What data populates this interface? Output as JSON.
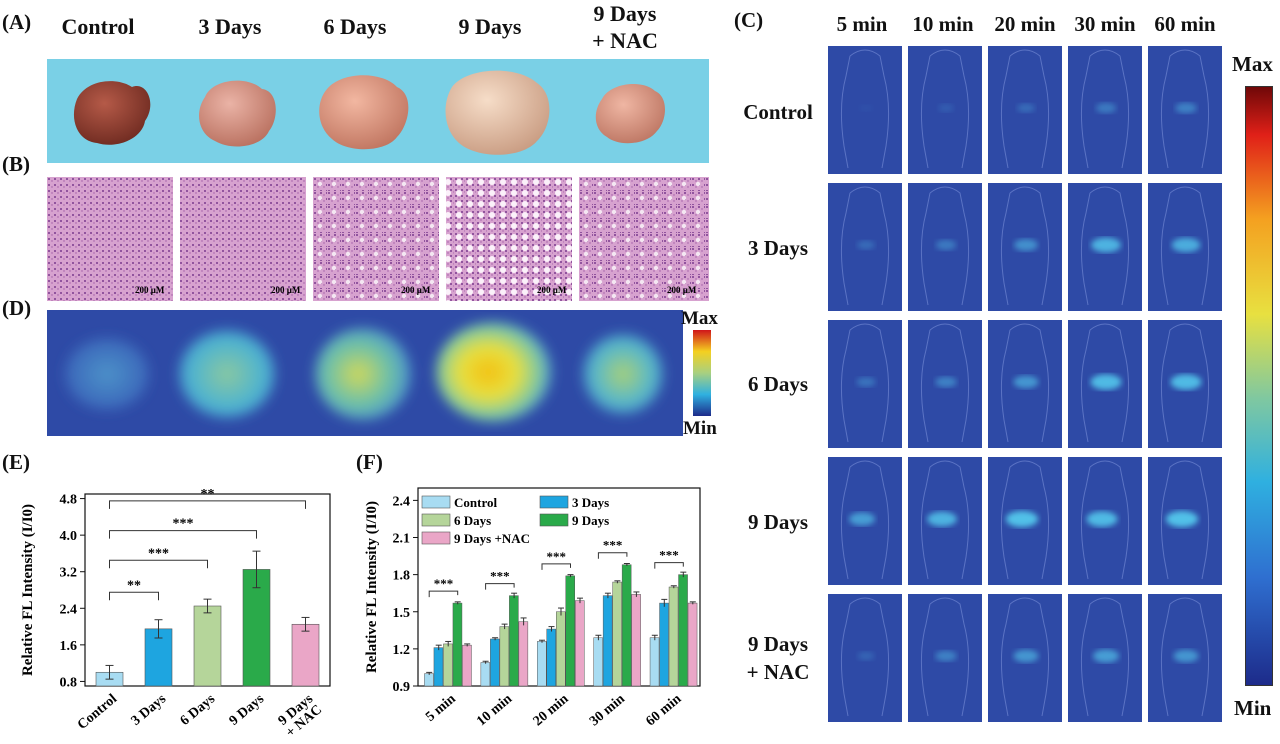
{
  "panels": {
    "a": "(A)",
    "b": "(B)",
    "c": "(C)",
    "d": "(D)",
    "e": "(E)",
    "f": "(F)"
  },
  "groups": [
    "Control",
    "3 Days",
    "6 Days",
    "9 Days",
    "9 Days\n+ NAC"
  ],
  "a": {
    "headers": [
      "Control",
      "3 Days",
      "6 Days",
      "9 Days",
      "9 Days",
      "+ NAC"
    ],
    "background": "#7ad0e6",
    "liver_colors": [
      "#8a3a2c",
      "#d39083",
      "#d9927e",
      "#e2bfa6",
      "#d79480"
    ]
  },
  "b": {
    "scale": "200 μM"
  },
  "d": {
    "max": "Max",
    "min": "Min"
  },
  "c": {
    "time_headers": [
      "5 min",
      "10 min",
      "20 min",
      "30 min",
      "60 min"
    ],
    "row_labels": [
      "Control",
      "3 Days",
      "6 Days",
      "9 Days",
      "9 Days",
      "+ NAC"
    ],
    "max": "Max",
    "min": "Min",
    "bg_color": "#2e4aa6"
  },
  "chart_data": [
    {
      "type": "bar",
      "panel": "E",
      "categories": [
        "Control",
        "3 Days",
        "6 Days",
        "9 Days",
        "9 Days\n+ NAC"
      ],
      "values": [
        1.0,
        1.95,
        2.45,
        3.25,
        2.05
      ],
      "errors": [
        0.15,
        0.2,
        0.15,
        0.4,
        0.15
      ],
      "colors": [
        "#a8dcf2",
        "#1ea5e0",
        "#b5d59a",
        "#2aaa4a",
        "#eaa6c7"
      ],
      "ylabel": "Relative FL Intensity (I/I0)",
      "yticks": [
        0.8,
        1.6,
        2.4,
        3.2,
        4.0,
        4.8
      ],
      "ylim": [
        0.7,
        4.9
      ],
      "significance": [
        {
          "from": 0,
          "to": 1,
          "label": "**"
        },
        {
          "from": 0,
          "to": 2,
          "label": "***"
        },
        {
          "from": 0,
          "to": 3,
          "label": "***"
        },
        {
          "from": 0,
          "to": 4,
          "label": "**"
        }
      ]
    },
    {
      "type": "bar",
      "panel": "F",
      "categories": [
        "5 min",
        "10 min",
        "20 min",
        "30 min",
        "60 min"
      ],
      "series": [
        {
          "name": "Control",
          "color": "#a8dcf2",
          "values": [
            1.0,
            1.09,
            1.26,
            1.29,
            1.29
          ],
          "errors": [
            0.01,
            0.01,
            0.01,
            0.02,
            0.02
          ]
        },
        {
          "name": "3 Days",
          "color": "#1ea5e0",
          "values": [
            1.21,
            1.28,
            1.36,
            1.63,
            1.57
          ],
          "errors": [
            0.02,
            0.01,
            0.02,
            0.02,
            0.03
          ]
        },
        {
          "name": "6 Days",
          "color": "#b5d59a",
          "values": [
            1.24,
            1.38,
            1.5,
            1.74,
            1.7
          ],
          "errors": [
            0.02,
            0.02,
            0.03,
            0.01,
            0.01
          ]
        },
        {
          "name": "9 Days",
          "color": "#2aaa4a",
          "values": [
            1.57,
            1.63,
            1.79,
            1.88,
            1.8
          ],
          "errors": [
            0.01,
            0.02,
            0.01,
            0.01,
            0.02
          ]
        },
        {
          "name": "9 Days +NAC",
          "color": "#eaa6c7",
          "values": [
            1.23,
            1.42,
            1.59,
            1.64,
            1.57
          ],
          "errors": [
            0.01,
            0.03,
            0.02,
            0.02,
            0.01
          ]
        }
      ],
      "ylabel": "Relative FL Intensity (I/I0)",
      "yticks": [
        0.9,
        1.2,
        1.5,
        1.8,
        2.1,
        2.4
      ],
      "ylim": [
        0.9,
        2.5
      ],
      "significance_label": "***"
    }
  ]
}
